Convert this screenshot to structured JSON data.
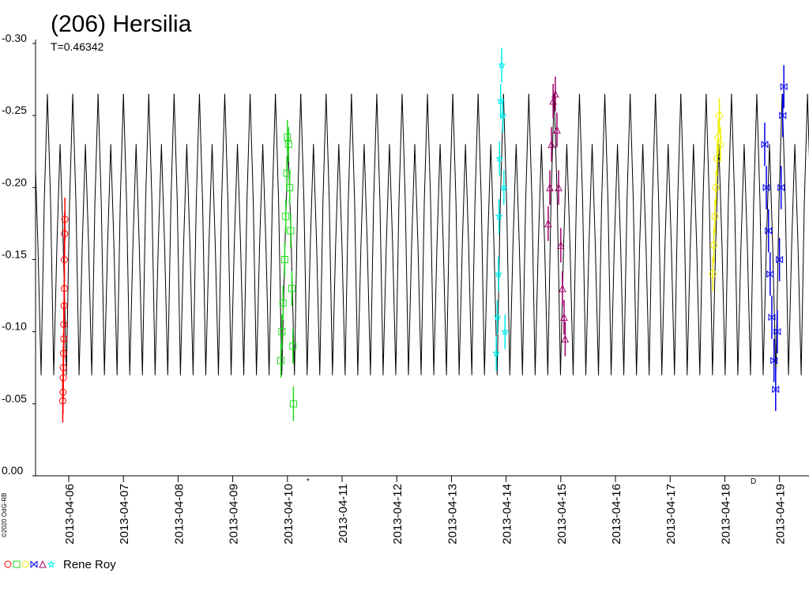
{
  "chart_data": {
    "type": "scatter",
    "title": "(206) Hersilia",
    "period": {
      "value": 0.46342,
      "label": "T=0.46342"
    },
    "credit": "©2020 OdG-RB",
    "legend": "Rene Roy",
    "annotations": [
      "*",
      "D"
    ],
    "xlim": [
      5.393,
      19.54
    ],
    "ylim": [
      0,
      -0.3
    ],
    "xticks": [
      {
        "value": 6,
        "label": "2013-04-06"
      },
      {
        "value": 7,
        "label": "2013-04-07"
      },
      {
        "value": 8,
        "label": "2013-04-08"
      },
      {
        "value": 9,
        "label": "2013-04-09"
      },
      {
        "value": 10,
        "label": "2013-04-10"
      },
      {
        "value": 11,
        "label": "2013-04-11"
      },
      {
        "value": 12,
        "label": "2013-04-12"
      },
      {
        "value": 13,
        "label": "2013-04-13"
      },
      {
        "value": 14,
        "label": "2013-04-14"
      },
      {
        "value": 15,
        "label": "2013-04-15"
      },
      {
        "value": 16,
        "label": "2013-04-16"
      },
      {
        "value": 17,
        "label": "2013-04-17"
      },
      {
        "value": 18,
        "label": "2013-04-18"
      },
      {
        "value": 19,
        "label": "2013-04-19"
      }
    ],
    "yticks": [
      {
        "value": -0.3,
        "label": "-0.30"
      },
      {
        "value": -0.25,
        "label": "-0.25"
      },
      {
        "value": -0.2,
        "label": "-0.20"
      },
      {
        "value": -0.15,
        "label": "-0.15"
      },
      {
        "value": -0.1,
        "label": "-0.10"
      },
      {
        "value": -0.05,
        "label": "-0.05"
      },
      {
        "value": 0,
        "label": "0.00"
      }
    ],
    "model": {
      "color": "#000000",
      "epoch": 5.61,
      "phase": [
        0,
        0.125,
        0.25,
        0.375,
        0.5,
        0.625,
        0.75,
        0.875,
        1
      ],
      "values": [
        -0.265,
        -0.19,
        -0.07,
        -0.16,
        -0.23,
        -0.16,
        -0.07,
        -0.19,
        -0.265
      ]
    },
    "series": [
      {
        "color": "#ff0000",
        "marker": "circle",
        "error": 0.015,
        "x": [
          5.89,
          5.895,
          5.9,
          5.9,
          5.905,
          5.91,
          5.91,
          5.915,
          5.92,
          5.92,
          5.925,
          5.93
        ],
        "values": [
          -0.052,
          -0.058,
          -0.068,
          -0.075,
          -0.085,
          -0.095,
          -0.105,
          -0.118,
          -0.13,
          -0.15,
          -0.168,
          -0.178
        ]
      },
      {
        "color": "#22dd22",
        "marker": "square",
        "error": 0.012,
        "x": [
          9.88,
          9.9,
          9.92,
          9.95,
          9.97,
          9.99,
          10.0,
          10.02,
          10.04,
          10.06,
          10.08,
          10.1,
          10.11
        ],
        "values": [
          -0.08,
          -0.1,
          -0.12,
          -0.15,
          -0.18,
          -0.21,
          -0.235,
          -0.23,
          -0.2,
          -0.17,
          -0.13,
          -0.09,
          -0.05
        ]
      },
      {
        "color": "#eeee00",
        "marker": "circle",
        "error": 0.012,
        "x": [
          17.78,
          17.8,
          17.82,
          17.84,
          17.86,
          17.88,
          17.9,
          17.92
        ],
        "values": [
          -0.14,
          -0.16,
          -0.18,
          -0.2,
          -0.22,
          -0.235,
          -0.25,
          -0.23
        ]
      },
      {
        "color": "#0000ee",
        "marker": "xbox",
        "error": 0.015,
        "x": [
          18.73,
          18.76,
          18.8,
          18.83,
          18.86,
          18.9,
          18.93,
          18.96,
          19.0,
          19.03,
          19.06,
          19.08
        ],
        "values": [
          -0.23,
          -0.2,
          -0.17,
          -0.14,
          -0.11,
          -0.08,
          -0.06,
          -0.1,
          -0.15,
          -0.2,
          -0.25,
          -0.27
        ]
      },
      {
        "color": "#a0006a",
        "marker": "triangle",
        "error": 0.012,
        "x": [
          14.77,
          14.8,
          14.83,
          14.86,
          14.9,
          14.93,
          14.96,
          15.0,
          15.03,
          15.06,
          15.08
        ],
        "values": [
          -0.175,
          -0.2,
          -0.23,
          -0.26,
          -0.265,
          -0.24,
          -0.2,
          -0.16,
          -0.13,
          -0.11,
          -0.095
        ]
      },
      {
        "color": "#00eeee",
        "marker": "star",
        "error": 0.012,
        "x": [
          13.82,
          13.84,
          13.86,
          13.87,
          13.88,
          13.9,
          13.92,
          13.94,
          13.96,
          13.98
        ],
        "values": [
          -0.085,
          -0.11,
          -0.14,
          -0.18,
          -0.22,
          -0.26,
          -0.285,
          -0.25,
          -0.2,
          -0.1
        ]
      }
    ]
  }
}
